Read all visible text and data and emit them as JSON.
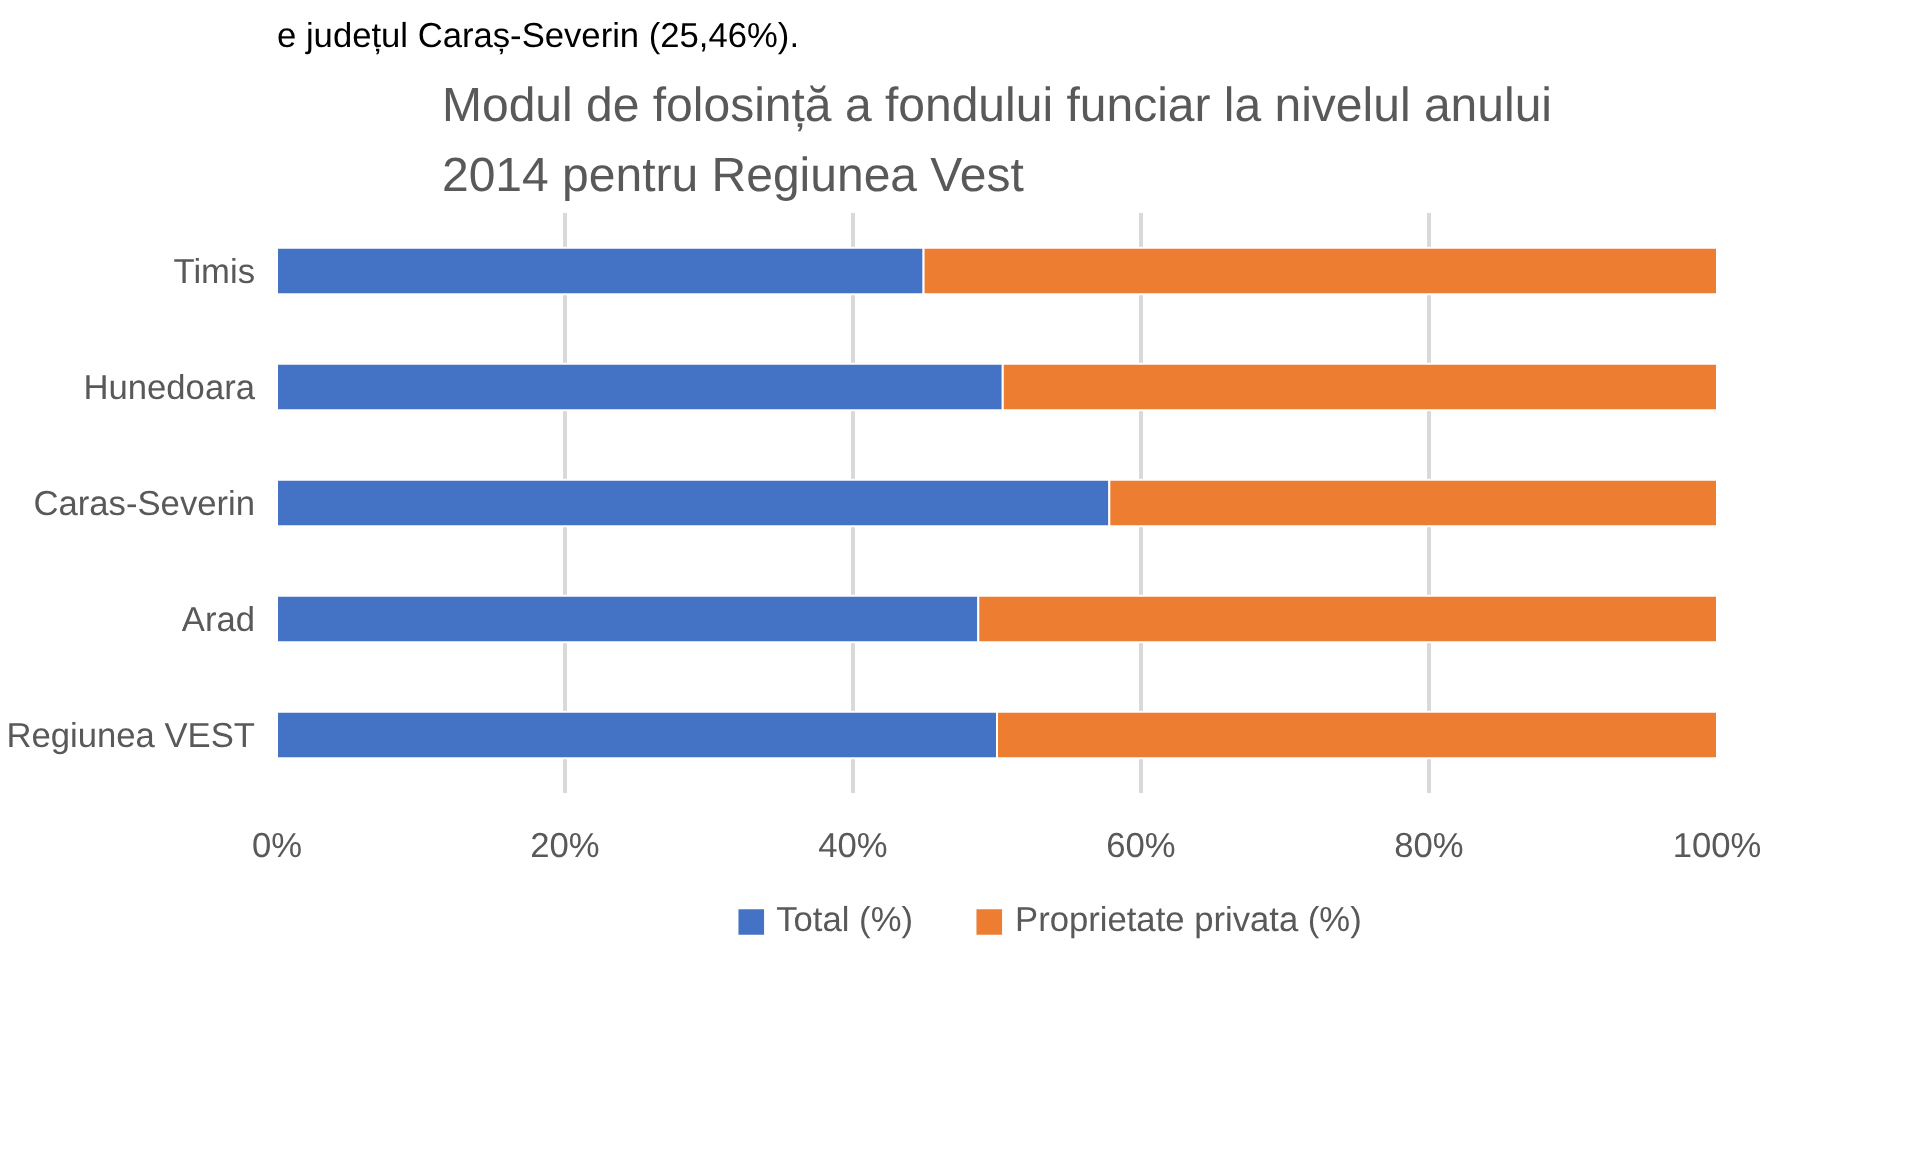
{
  "chart_data": {
    "type": "bar",
    "orientation": "horizontal",
    "stacked": true,
    "title": "Modul de folosință a fondului funciar la nivelul anului\n2014 pentru Regiunea Vest",
    "annotations": [
      "e județul Caraș-Severin (25,46%)."
    ],
    "categories": [
      "Timis",
      "Hunedoara",
      "Caras-Severin",
      "Arad",
      "Regiunea VEST"
    ],
    "series": [
      {
        "name": "Total (%)",
        "color": "#4472c4",
        "values": [
          44.9,
          50.4,
          57.8,
          48.7,
          50.0
        ]
      },
      {
        "name": "Proprietate privata (%)",
        "color": "#ed7d31",
        "values": [
          55.1,
          49.6,
          42.2,
          51.3,
          50.0
        ]
      }
    ],
    "xlim": [
      0,
      100
    ],
    "xticks": [
      {
        "value": 0,
        "label": "0%"
      },
      {
        "value": 20,
        "label": "20%"
      },
      {
        "value": 40,
        "label": "40%"
      },
      {
        "value": 60,
        "label": "60%"
      },
      {
        "value": 80,
        "label": "80%"
      },
      {
        "value": 100,
        "label": "100%"
      }
    ],
    "grid": "x",
    "legend": "bottom"
  }
}
